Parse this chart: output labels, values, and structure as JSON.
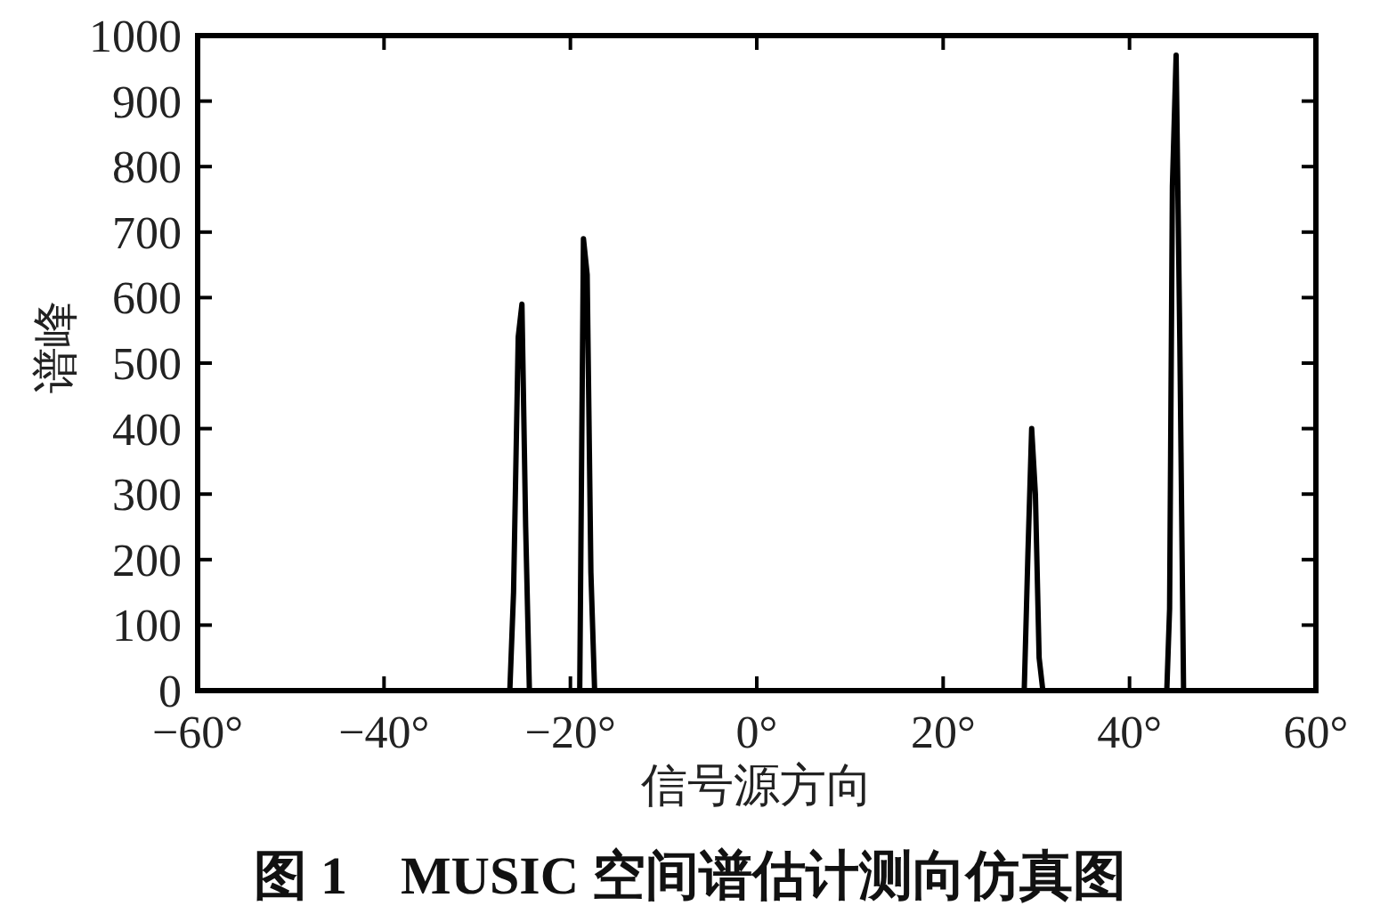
{
  "chart_data": {
    "type": "line",
    "xlabel": "信号源方向",
    "ylabel": "谱峰",
    "annotations": [
      "图 1　MUSIC 空间谱估计测向仿真图"
    ],
    "x": [
      -60,
      -26.5,
      -26.1,
      -25.6,
      -25.2,
      -24.8,
      -24.4,
      -19.0,
      -18.6,
      -18.2,
      -17.8,
      -17.4,
      28.7,
      29.1,
      29.5,
      29.9,
      30.3,
      30.7,
      44.0,
      44.3,
      44.6,
      45.0,
      45.4,
      45.8,
      60
    ],
    "series": [
      {
        "color": "#000000",
        "values": [
          0,
          0,
          150,
          540,
          590,
          250,
          0,
          0,
          690,
          635,
          180,
          0,
          0,
          210,
          400,
          300,
          50,
          0,
          0,
          125,
          770,
          970,
          530,
          0,
          0
        ]
      }
    ],
    "xlim": [
      -60,
      60
    ],
    "ylim": [
      0,
      1000
    ],
    "xticks": [
      {
        "value": -60,
        "label": "−60°"
      },
      {
        "value": -40,
        "label": "−40°"
      },
      {
        "value": -20,
        "label": "−20°"
      },
      {
        "value": 0,
        "label": "0°"
      },
      {
        "value": 20,
        "label": "20°"
      },
      {
        "value": 40,
        "label": "40°"
      },
      {
        "value": 60,
        "label": "60°"
      }
    ],
    "yticks": [
      0,
      100,
      200,
      300,
      400,
      500,
      600,
      700,
      800,
      900,
      1000
    ],
    "line_style": "solid"
  }
}
